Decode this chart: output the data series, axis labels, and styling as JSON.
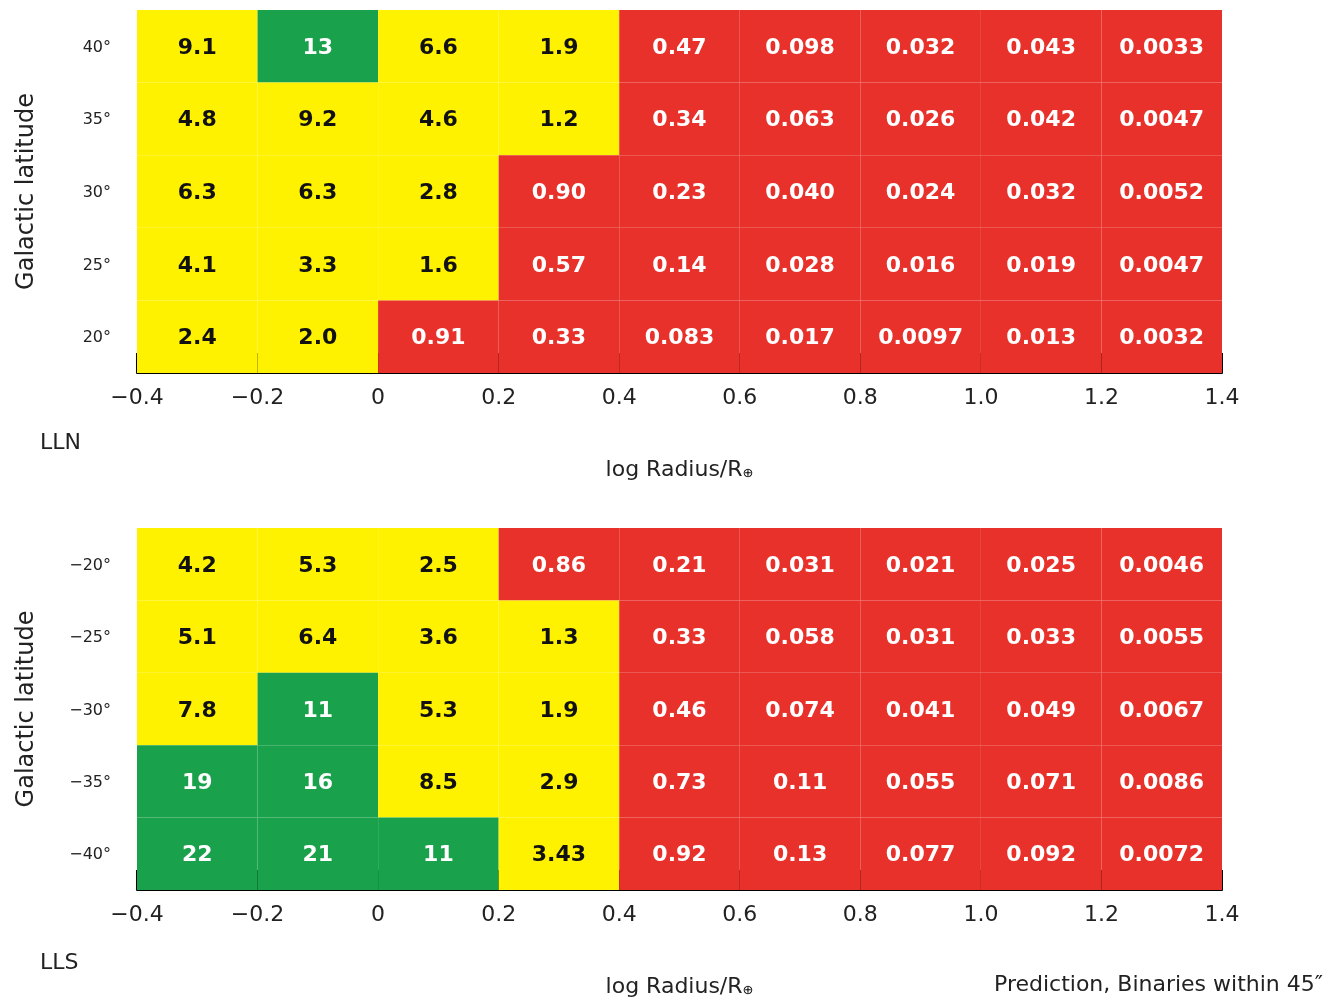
{
  "chart_data": [
    {
      "type": "heatmap",
      "xlabel": "log Radius/R$_{⊕}$",
      "ylabel": "Galactic latitude",
      "annotations": [
        "LLN"
      ],
      "x": [
        -0.3,
        -0.1,
        0.1,
        0.3,
        0.5,
        0.7,
        0.9,
        1.1,
        1.3
      ],
      "y_categories": [
        "40°",
        "35°",
        "30°",
        "25°",
        "20°"
      ],
      "xlim": [
        -0.4,
        1.4
      ],
      "xticks": [
        {
          "value": -0.4,
          "label": "−0.4"
        },
        {
          "value": -0.2,
          "label": "−0.2"
        },
        0,
        0.2,
        0.4,
        0.6,
        0.8,
        {
          "value": 1.0,
          "label": "1.0"
        },
        1.2,
        1.4
      ],
      "cells": [
        [
          9.1,
          13,
          6.6,
          1.9,
          0.47,
          0.098,
          0.032,
          0.043,
          0.0033
        ],
        [
          4.8,
          9.2,
          4.6,
          1.2,
          0.34,
          0.063,
          0.026,
          0.042,
          0.0047
        ],
        [
          6.3,
          6.3,
          2.8,
          0.9,
          0.23,
          0.04,
          0.024,
          0.032,
          0.0052
        ],
        [
          4.1,
          3.3,
          1.6,
          0.57,
          0.14,
          0.028,
          0.016,
          0.019,
          0.0047
        ],
        [
          2.4,
          2.0,
          0.91,
          0.33,
          0.083,
          0.017,
          0.0097,
          0.013,
          0.0032
        ]
      ],
      "cell_labels": [
        [
          "9.1",
          "13",
          "6.6",
          "1.9",
          "0.47",
          "0.098",
          "0.032",
          "0.043",
          "0.0033"
        ],
        [
          "4.8",
          "9.2",
          "4.6",
          "1.2",
          "0.34",
          "0.063",
          "0.026",
          "0.042",
          "0.0047"
        ],
        [
          "6.3",
          "6.3",
          "2.8",
          "0.90",
          "0.23",
          "0.040",
          "0.024",
          "0.032",
          "0.0052"
        ],
        [
          "4.1",
          "3.3",
          "1.6",
          "0.57",
          "0.14",
          "0.028",
          "0.016",
          "0.019",
          "0.0047"
        ],
        [
          "2.4",
          "2.0",
          "0.91",
          "0.33",
          "0.083",
          "0.017",
          "0.0097",
          "0.013",
          "0.0032"
        ]
      ],
      "colors": [
        [
          "#fff200",
          "#1aa14b",
          "#fff200",
          "#fff200",
          "#e8312a",
          "#e8312a",
          "#e8312a",
          "#e8312a",
          "#e8312a"
        ],
        [
          "#fff200",
          "#fff200",
          "#fff200",
          "#fff200",
          "#e8312a",
          "#e8312a",
          "#e8312a",
          "#e8312a",
          "#e8312a"
        ],
        [
          "#fff200",
          "#fff200",
          "#fff200",
          "#e8312a",
          "#e8312a",
          "#e8312a",
          "#e8312a",
          "#e8312a",
          "#e8312a"
        ],
        [
          "#fff200",
          "#fff200",
          "#fff200",
          "#e8312a",
          "#e8312a",
          "#e8312a",
          "#e8312a",
          "#e8312a",
          "#e8312a"
        ],
        [
          "#fff200",
          "#fff200",
          "#e8312a",
          "#e8312a",
          "#e8312a",
          "#e8312a",
          "#e8312a",
          "#e8312a",
          "#e8312a"
        ]
      ]
    },
    {
      "type": "heatmap",
      "xlabel": "log Radius/R$_{⊕}$",
      "ylabel": "Galactic latitude",
      "annotations": [
        "LLS",
        "Prediction, Binaries within 45″"
      ],
      "x": [
        -0.3,
        -0.1,
        0.1,
        0.3,
        0.5,
        0.7,
        0.9,
        1.1,
        1.3
      ],
      "y_categories": [
        "−20°",
        "−25°",
        "−30°",
        "−35°",
        "−40°"
      ],
      "xlim": [
        -0.4,
        1.4
      ],
      "xticks": [
        {
          "value": -0.4,
          "label": "−0.4"
        },
        {
          "value": -0.2,
          "label": "−0.2"
        },
        0,
        0.2,
        0.4,
        0.6,
        0.8,
        {
          "value": 1.0,
          "label": "1.0"
        },
        1.2,
        1.4
      ],
      "cells": [
        [
          4.2,
          5.3,
          2.5,
          0.86,
          0.21,
          0.031,
          0.021,
          0.025,
          0.0046
        ],
        [
          5.1,
          6.4,
          3.6,
          1.3,
          0.33,
          0.058,
          0.031,
          0.033,
          0.0055
        ],
        [
          7.8,
          11,
          5.3,
          1.9,
          0.46,
          0.074,
          0.041,
          0.049,
          0.0067
        ],
        [
          19,
          16,
          8.5,
          2.9,
          0.73,
          0.11,
          0.055,
          0.071,
          0.0086
        ],
        [
          22,
          21,
          11,
          3.43,
          0.92,
          0.13,
          0.077,
          0.092,
          0.0072
        ]
      ],
      "cell_labels": [
        [
          "4.2",
          "5.3",
          "2.5",
          "0.86",
          "0.21",
          "0.031",
          "0.021",
          "0.025",
          "0.0046"
        ],
        [
          "5.1",
          "6.4",
          "3.6",
          "1.3",
          "0.33",
          "0.058",
          "0.031",
          "0.033",
          "0.0055"
        ],
        [
          "7.8",
          "11",
          "5.3",
          "1.9",
          "0.46",
          "0.074",
          "0.041",
          "0.049",
          "0.0067"
        ],
        [
          "19",
          "16",
          "8.5",
          "2.9",
          "0.73",
          "0.11",
          "0.055",
          "0.071",
          "0.0086"
        ],
        [
          "22",
          "21",
          "11",
          "3.43",
          "0.92",
          "0.13",
          "0.077",
          "0.092",
          "0.0072"
        ]
      ],
      "colors": [
        [
          "#fff200",
          "#fff200",
          "#fff200",
          "#e8312a",
          "#e8312a",
          "#e8312a",
          "#e8312a",
          "#e8312a",
          "#e8312a"
        ],
        [
          "#fff200",
          "#fff200",
          "#fff200",
          "#fff200",
          "#e8312a",
          "#e8312a",
          "#e8312a",
          "#e8312a",
          "#e8312a"
        ],
        [
          "#fff200",
          "#1aa14b",
          "#fff200",
          "#fff200",
          "#e8312a",
          "#e8312a",
          "#e8312a",
          "#e8312a",
          "#e8312a"
        ],
        [
          "#1aa14b",
          "#1aa14b",
          "#fff200",
          "#fff200",
          "#e8312a",
          "#e8312a",
          "#e8312a",
          "#e8312a",
          "#e8312a"
        ],
        [
          "#1aa14b",
          "#1aa14b",
          "#1aa14b",
          "#fff200",
          "#e8312a",
          "#e8312a",
          "#e8312a",
          "#e8312a",
          "#e8312a"
        ]
      ]
    }
  ]
}
